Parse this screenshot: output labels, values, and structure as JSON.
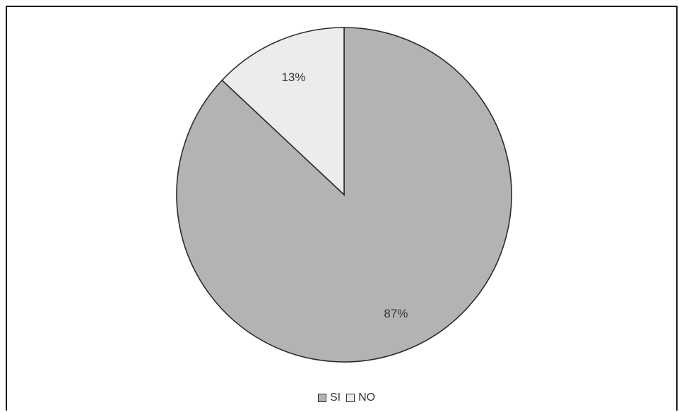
{
  "chart_data": {
    "type": "pie",
    "title": "",
    "slices": [
      {
        "label": "SI",
        "value": 87,
        "display": "87%",
        "color": "#b3b3b3"
      },
      {
        "label": "NO",
        "value": 13,
        "display": "13%",
        "color": "#ececec"
      }
    ],
    "start_angle_deg": 0,
    "direction": "clockwise",
    "legend": {
      "placement": "bottom",
      "items": [
        {
          "label": "SI",
          "color": "#b3b3b3"
        },
        {
          "label": "NO",
          "color": "#ececec"
        }
      ]
    }
  }
}
